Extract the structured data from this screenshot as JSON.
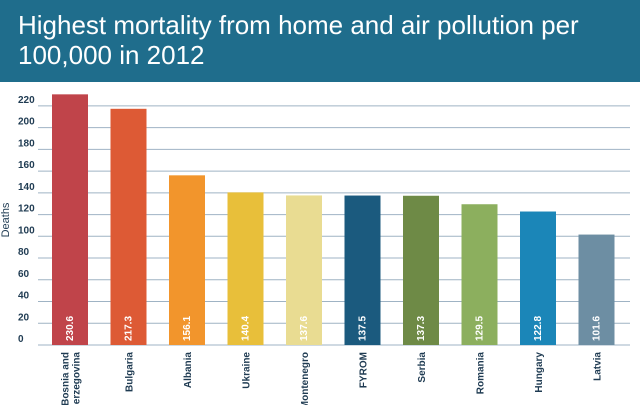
{
  "chart_data": {
    "type": "bar",
    "title": "Highest mortality from home and air pollution per 100,000 in 2012",
    "ylabel": "Deaths",
    "xlabel": "",
    "ylim": [
      0,
      230
    ],
    "yticks": [
      0,
      20,
      40,
      60,
      80,
      100,
      120,
      140,
      160,
      180,
      200,
      220
    ],
    "grid": true,
    "categories": [
      "Bosnia and Herzegovina",
      "Bulgaria",
      "Albania",
      "Ukraine",
      "Montenegro",
      "FYROM",
      "Serbia",
      "Romania",
      "Hungary",
      "Latvia"
    ],
    "value_labels": [
      "230.6",
      "217.3",
      "156.1",
      "140.4",
      "137.6",
      "137.5",
      "137.3",
      "129.5",
      "122.8",
      "101.6"
    ],
    "values": [
      230.6,
      217.3,
      156.1,
      140.4,
      137.6,
      137.5,
      137.3,
      129.5,
      122.8,
      101.6
    ],
    "colors": [
      "#c0444a",
      "#dd5a35",
      "#f2952c",
      "#e8bf3a",
      "#e9dc92",
      "#1b5a7e",
      "#6e8a46",
      "#8caf5e",
      "#1b86b8",
      "#6d8ea3"
    ]
  }
}
